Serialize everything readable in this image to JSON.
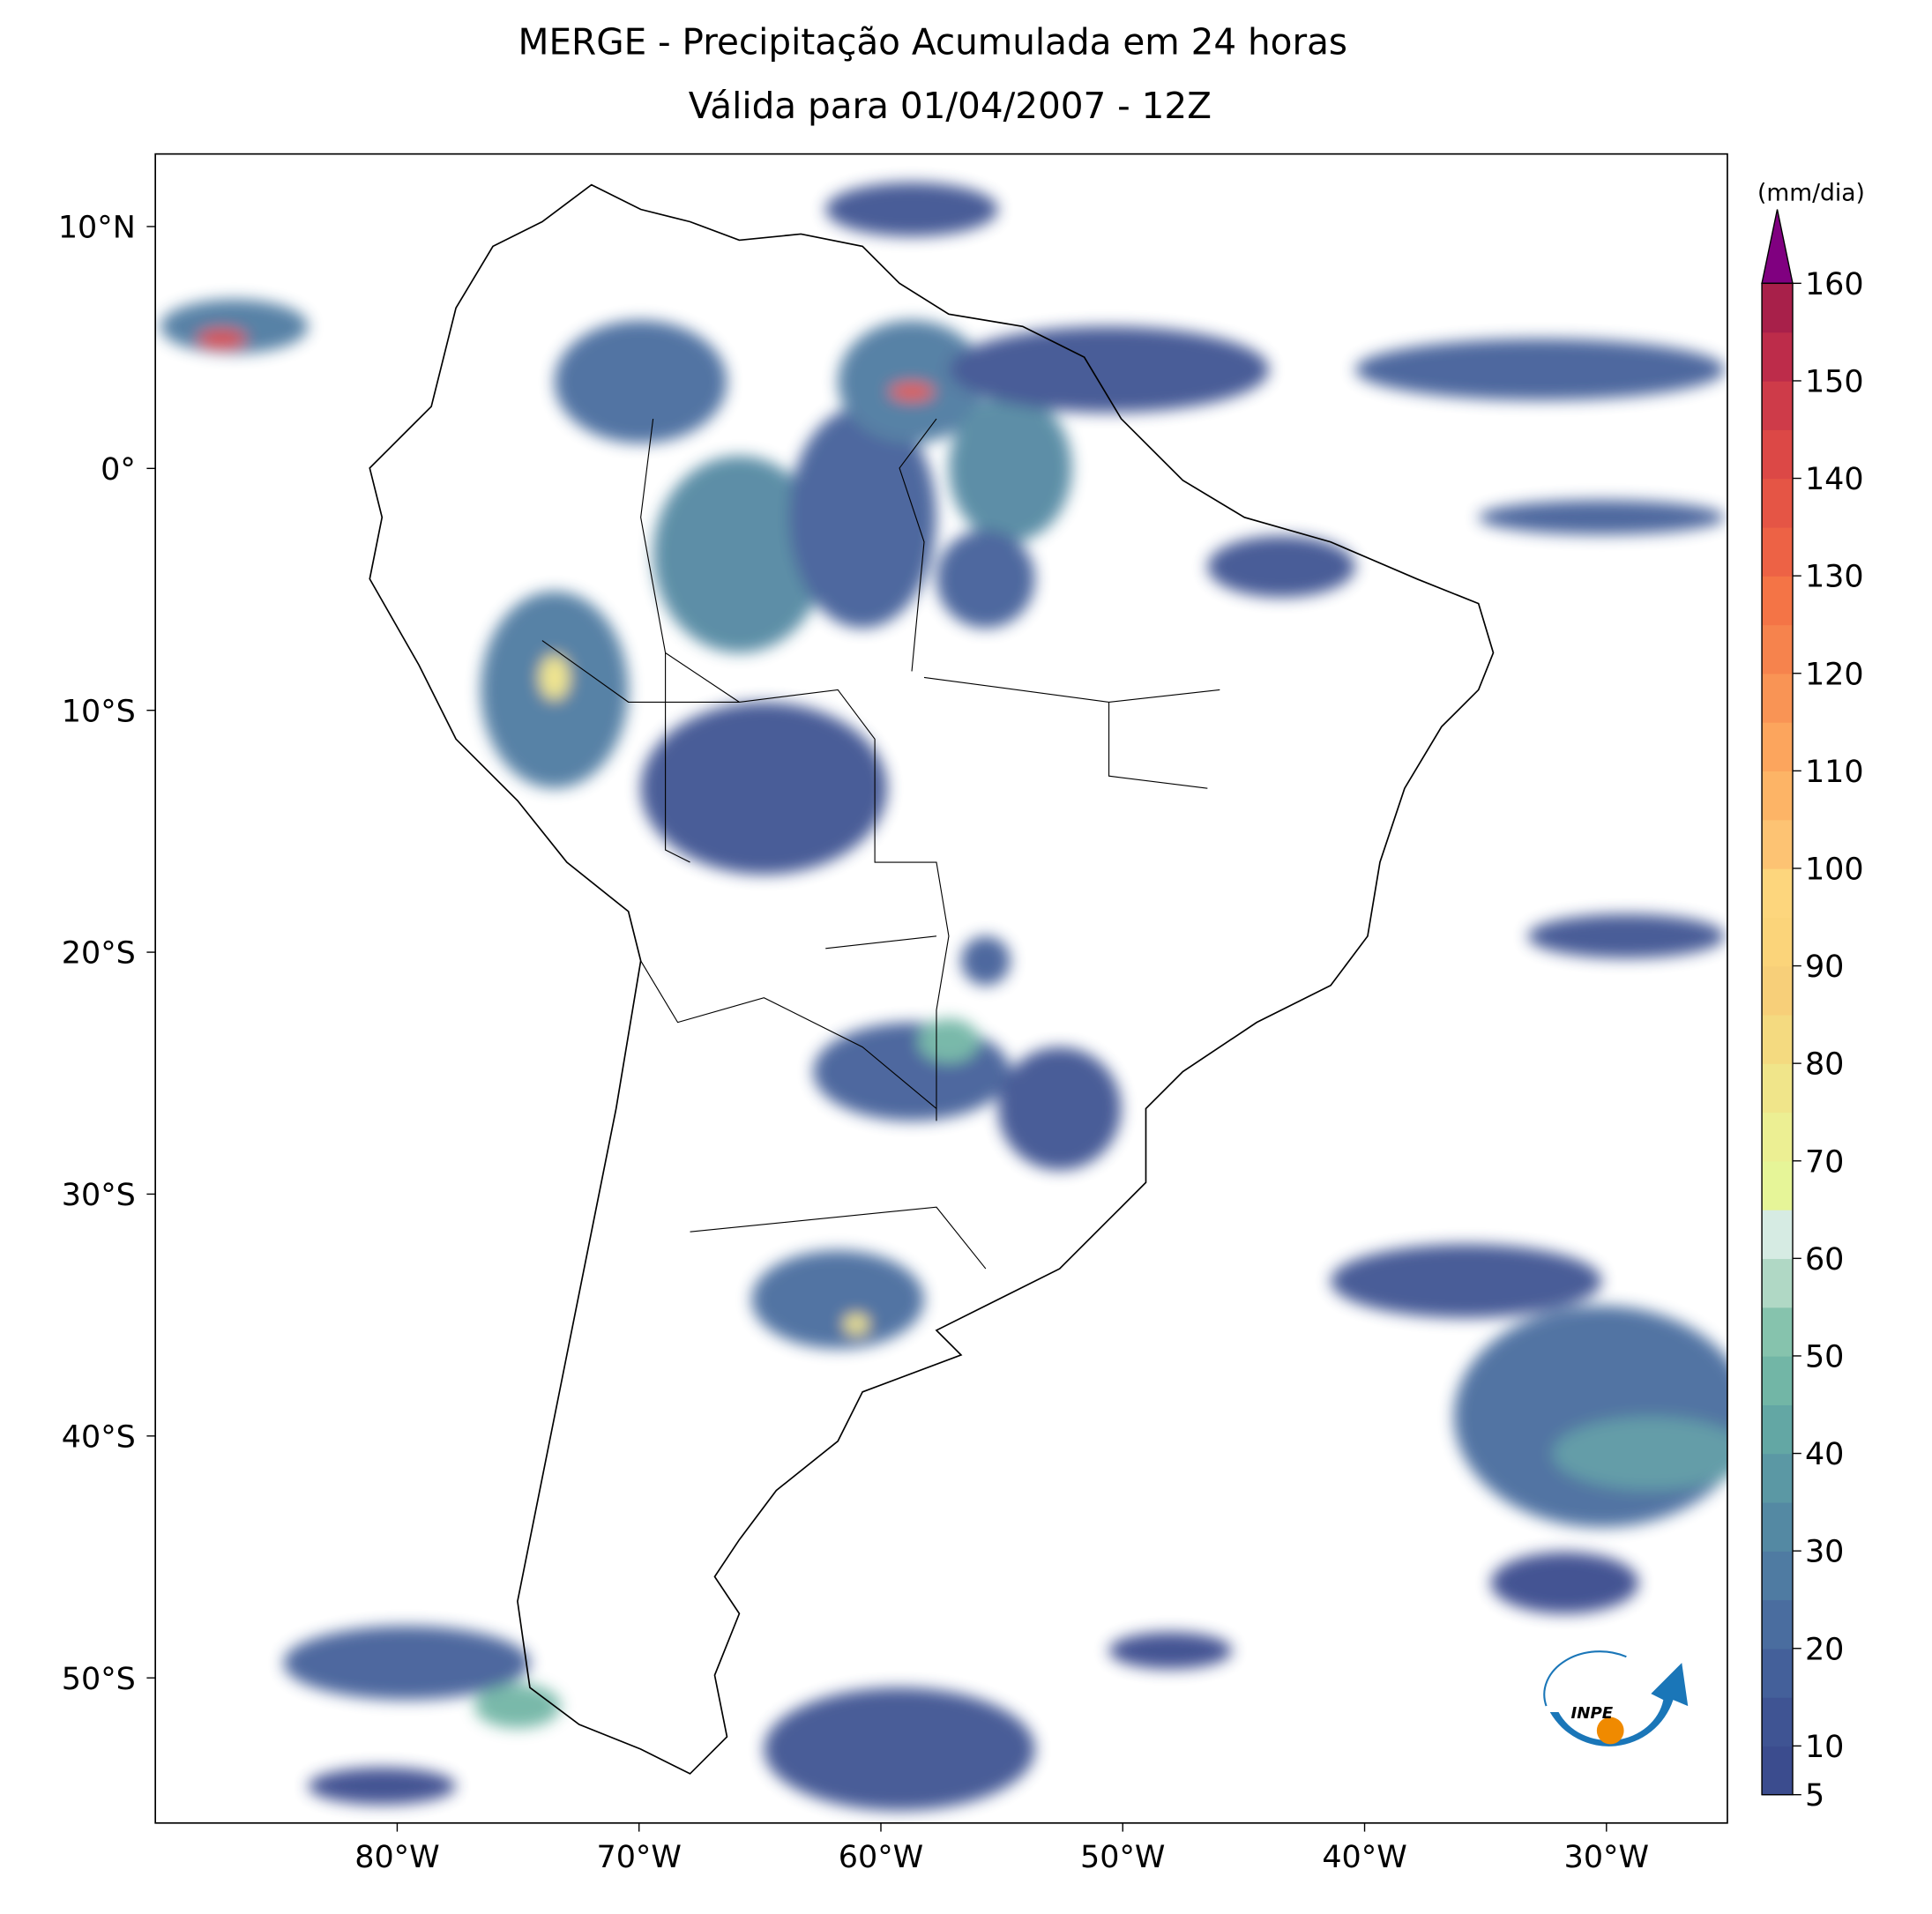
{
  "map": {
    "title": "MERGE - Precipitação Acumulada em 24 horas",
    "subtitle": "Válida para 01/04/2007 - 12Z",
    "xlim": [
      -90,
      -25
    ],
    "ylim": [
      -56,
      13
    ],
    "xticks": [
      {
        "value": -80,
        "label": "80°W"
      },
      {
        "value": -70,
        "label": "70°W"
      },
      {
        "value": -60,
        "label": "60°W"
      },
      {
        "value": -50,
        "label": "50°W"
      },
      {
        "value": -40,
        "label": "40°W"
      },
      {
        "value": -30,
        "label": "30°W"
      }
    ],
    "yticks": [
      {
        "value": 10,
        "label": "10°N"
      },
      {
        "value": 0,
        "label": "0°"
      },
      {
        "value": -10,
        "label": "10°S"
      },
      {
        "value": -20,
        "label": "20°S"
      },
      {
        "value": -30,
        "label": "30°S"
      },
      {
        "value": -40,
        "label": "40°S"
      },
      {
        "value": -50,
        "label": "50°S"
      }
    ],
    "colorbar": {
      "label": "(mm/dia)",
      "lim": [
        5,
        160
      ],
      "ticks": [
        5,
        10,
        20,
        30,
        40,
        50,
        60,
        70,
        80,
        90,
        100,
        110,
        120,
        130,
        140,
        150,
        160
      ],
      "colors": [
        "#3b4c8e",
        "#3f5493",
        "#44609a",
        "#4a6d9f",
        "#4f7ba2",
        "#5489a3",
        "#5b98a4",
        "#63a7a4",
        "#72b6a6",
        "#86c3ad",
        "#b0d8c5",
        "#d6ebe3",
        "#e6f598",
        "#ecef93",
        "#f0e58a",
        "#f4da80",
        "#f7cf79",
        "#fbd47a",
        "#fdd67d",
        "#fdc373",
        "#fdb466",
        "#fca55d",
        "#f99455",
        "#f6834d",
        "#f47446",
        "#ed6245",
        "#e55545",
        "#dc4846",
        "#ce3b49",
        "#bd2c4a",
        "#a8204a"
      ],
      "extend_color": "#800080"
    },
    "logo": "INPE"
  }
}
